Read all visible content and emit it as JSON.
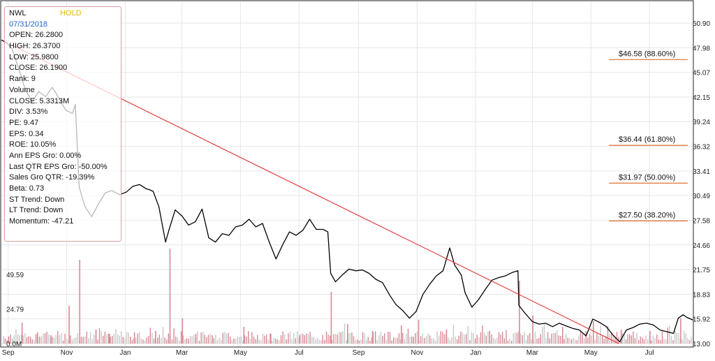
{
  "chart_data": {
    "type": "stock",
    "ticker": "NWL",
    "rating": "HOLD",
    "colors": {
      "price": "#000000",
      "trendline": "#e03030",
      "fib_line": "#e07030",
      "volume_up": "#d88a94",
      "volume_down": "#c8c8c8",
      "panel_border": "#d9a0a0",
      "date_text": "#2266cc",
      "rating_text": "#e6b800"
    },
    "info_panel": [
      {
        "key": "date",
        "text": "07/31/2018"
      },
      {
        "key": "open",
        "text": "OPEN: 26.2800"
      },
      {
        "key": "high",
        "text": "HIGH: 26.3700"
      },
      {
        "key": "low",
        "text": "LOW: 25.9800"
      },
      {
        "key": "close",
        "text": "CLOSE: 26.1900"
      },
      {
        "key": "rank",
        "text": "Rank: 9"
      },
      {
        "key": "volume",
        "text": "Volume"
      },
      {
        "key": "volume_close",
        "text": "CLOSE: 5.3313M"
      },
      {
        "key": "div",
        "text": "DIV: 3.53%"
      },
      {
        "key": "pe",
        "text": "PE: 9.47"
      },
      {
        "key": "eps",
        "text": "EPS: 0.34"
      },
      {
        "key": "roe",
        "text": "ROE: 10.05%"
      },
      {
        "key": "ann_eps_gro",
        "text": "Ann EPS Gro: 0.00%"
      },
      {
        "key": "last_qtr_eps_gro",
        "text": "Last QTR EPS Gro: -50.00%"
      },
      {
        "key": "sales_gro_qtr",
        "text": "Sales Gro QTR: -19.39%"
      },
      {
        "key": "beta",
        "text": "Beta: 0.73"
      },
      {
        "key": "st_trend",
        "text": "ST Trend: Down"
      },
      {
        "key": "lt_trend",
        "text": "LT Trend: Down"
      },
      {
        "key": "momentum",
        "text": "Momentum: -47.21"
      }
    ],
    "price_axis": {
      "range": [
        13.0,
        50.9
      ],
      "ticks": [
        "50.90",
        "47.98",
        "45.07",
        "42.15",
        "39.24",
        "36.32",
        "33.41",
        "30.49",
        "27.58",
        "24.66",
        "21.75",
        "18.83",
        "15.92",
        "13.00"
      ]
    },
    "volume_axis": {
      "range_millions": [
        0,
        99
      ],
      "ticks": [
        "49.59",
        "24.79",
        "0.0M"
      ],
      "tick_values_millions": [
        49.59,
        24.79,
        0
      ]
    },
    "x_axis": {
      "start": "2017-08-25",
      "end": "2019-08-15",
      "ticks": [
        {
          "label": "Sep",
          "date": "2017-09-01"
        },
        {
          "label": "Nov",
          "date": "2017-11-01"
        },
        {
          "label": "Jan",
          "date": "2018-01-01"
        },
        {
          "label": "Mar",
          "date": "2018-03-01"
        },
        {
          "label": "May",
          "date": "2018-05-01"
        },
        {
          "label": "Jul",
          "date": "2018-07-01"
        },
        {
          "label": "Sep",
          "date": "2018-09-01"
        },
        {
          "label": "Nov",
          "date": "2018-11-01"
        },
        {
          "label": "Jan",
          "date": "2019-01-01"
        },
        {
          "label": "Mar",
          "date": "2019-03-01"
        },
        {
          "label": "May",
          "date": "2019-05-01"
        },
        {
          "label": "Jul",
          "date": "2019-07-01"
        }
      ]
    },
    "fibonacci_levels": [
      {
        "label": "$46.58 (88.60%)",
        "price": 46.58
      },
      {
        "label": "$36.44 (61.80%)",
        "price": 36.44
      },
      {
        "label": "$31.97 (50.00%)",
        "price": 31.97
      },
      {
        "label": "$27.50 (38.20%)",
        "price": 27.5
      }
    ],
    "trendline": [
      {
        "date": "2017-09-05",
        "price": 48.3
      },
      {
        "date": "2019-05-30",
        "price": 13.0
      }
    ],
    "price_series": [
      {
        "date": "2017-08-25",
        "close": 48.9
      },
      {
        "date": "2017-08-31",
        "close": 48.5
      },
      {
        "date": "2017-09-05",
        "close": 47.9
      },
      {
        "date": "2017-09-12",
        "close": 45.5
      },
      {
        "date": "2017-09-19",
        "close": 43.0
      },
      {
        "date": "2017-09-26",
        "close": 41.6
      },
      {
        "date": "2017-10-03",
        "close": 42.8
      },
      {
        "date": "2017-10-10",
        "close": 42.2
      },
      {
        "date": "2017-10-17",
        "close": 43.3
      },
      {
        "date": "2017-10-24",
        "close": 42.0
      },
      {
        "date": "2017-10-31",
        "close": 40.6
      },
      {
        "date": "2017-11-07",
        "close": 40.2
      },
      {
        "date": "2017-11-10",
        "close": 41.3
      },
      {
        "date": "2017-11-14",
        "close": 31.5
      },
      {
        "date": "2017-11-20",
        "close": 29.2
      },
      {
        "date": "2017-11-27",
        "close": 28.0
      },
      {
        "date": "2017-12-04",
        "close": 29.5
      },
      {
        "date": "2017-12-11",
        "close": 30.8
      },
      {
        "date": "2017-12-18",
        "close": 31.1
      },
      {
        "date": "2017-12-26",
        "close": 30.6
      },
      {
        "date": "2018-01-02",
        "close": 30.9
      },
      {
        "date": "2018-01-09",
        "close": 31.6
      },
      {
        "date": "2018-01-16",
        "close": 31.8
      },
      {
        "date": "2018-01-23",
        "close": 31.3
      },
      {
        "date": "2018-01-26",
        "close": 31.2
      },
      {
        "date": "2018-01-30",
        "close": 31.0
      },
      {
        "date": "2018-02-05",
        "close": 29.2
      },
      {
        "date": "2018-02-12",
        "close": 25.0
      },
      {
        "date": "2018-02-16",
        "close": 26.6
      },
      {
        "date": "2018-02-22",
        "close": 28.8
      },
      {
        "date": "2018-03-01",
        "close": 28.1
      },
      {
        "date": "2018-03-08",
        "close": 27.0
      },
      {
        "date": "2018-03-15",
        "close": 27.4
      },
      {
        "date": "2018-03-22",
        "close": 28.9
      },
      {
        "date": "2018-03-29",
        "close": 25.5
      },
      {
        "date": "2018-04-05",
        "close": 25.0
      },
      {
        "date": "2018-04-12",
        "close": 26.0
      },
      {
        "date": "2018-04-19",
        "close": 25.8
      },
      {
        "date": "2018-04-26",
        "close": 26.8
      },
      {
        "date": "2018-05-03",
        "close": 27.0
      },
      {
        "date": "2018-05-10",
        "close": 27.7
      },
      {
        "date": "2018-05-17",
        "close": 26.8
      },
      {
        "date": "2018-05-24",
        "close": 27.2
      },
      {
        "date": "2018-05-31",
        "close": 25.0
      },
      {
        "date": "2018-06-07",
        "close": 23.0
      },
      {
        "date": "2018-06-14",
        "close": 24.7
      },
      {
        "date": "2018-06-21",
        "close": 26.2
      },
      {
        "date": "2018-06-28",
        "close": 25.8
      },
      {
        "date": "2018-07-05",
        "close": 26.4
      },
      {
        "date": "2018-07-12",
        "close": 27.7
      },
      {
        "date": "2018-07-19",
        "close": 26.5
      },
      {
        "date": "2018-07-26",
        "close": 26.5
      },
      {
        "date": "2018-07-31",
        "close": 26.2
      },
      {
        "date": "2018-08-03",
        "close": 21.3
      },
      {
        "date": "2018-08-08",
        "close": 20.3
      },
      {
        "date": "2018-08-15",
        "close": 21.1
      },
      {
        "date": "2018-08-22",
        "close": 21.8
      },
      {
        "date": "2018-08-29",
        "close": 21.6
      },
      {
        "date": "2018-09-05",
        "close": 21.7
      },
      {
        "date": "2018-09-12",
        "close": 21.3
      },
      {
        "date": "2018-09-19",
        "close": 20.6
      },
      {
        "date": "2018-09-26",
        "close": 20.2
      },
      {
        "date": "2018-10-03",
        "close": 18.8
      },
      {
        "date": "2018-10-10",
        "close": 17.6
      },
      {
        "date": "2018-10-17",
        "close": 16.9
      },
      {
        "date": "2018-10-24",
        "close": 16.0
      },
      {
        "date": "2018-10-31",
        "close": 16.8
      },
      {
        "date": "2018-11-07",
        "close": 18.8
      },
      {
        "date": "2018-11-14",
        "close": 20.0
      },
      {
        "date": "2018-11-21",
        "close": 21.0
      },
      {
        "date": "2018-11-28",
        "close": 21.6
      },
      {
        "date": "2018-12-05",
        "close": 24.3
      },
      {
        "date": "2018-12-10",
        "close": 22.3
      },
      {
        "date": "2018-12-17",
        "close": 21.1
      },
      {
        "date": "2018-12-21",
        "close": 19.0
      },
      {
        "date": "2018-12-28",
        "close": 17.3
      },
      {
        "date": "2019-01-04",
        "close": 18.2
      },
      {
        "date": "2019-01-11",
        "close": 19.4
      },
      {
        "date": "2019-01-18",
        "close": 20.5
      },
      {
        "date": "2019-01-25",
        "close": 20.8
      },
      {
        "date": "2019-02-01",
        "close": 21.0
      },
      {
        "date": "2019-02-08",
        "close": 21.4
      },
      {
        "date": "2019-02-14",
        "close": 21.6
      },
      {
        "date": "2019-02-15",
        "close": 17.5
      },
      {
        "date": "2019-02-22",
        "close": 16.5
      },
      {
        "date": "2019-03-01",
        "close": 15.6
      },
      {
        "date": "2019-03-08",
        "close": 15.3
      },
      {
        "date": "2019-03-15",
        "close": 15.4
      },
      {
        "date": "2019-03-22",
        "close": 15.0
      },
      {
        "date": "2019-03-29",
        "close": 15.4
      },
      {
        "date": "2019-04-05",
        "close": 15.1
      },
      {
        "date": "2019-04-12",
        "close": 14.8
      },
      {
        "date": "2019-04-19",
        "close": 14.6
      },
      {
        "date": "2019-04-26",
        "close": 13.9
      },
      {
        "date": "2019-05-03",
        "close": 15.9
      },
      {
        "date": "2019-05-10",
        "close": 15.5
      },
      {
        "date": "2019-05-17",
        "close": 15.0
      },
      {
        "date": "2019-05-24",
        "close": 14.0
      },
      {
        "date": "2019-05-31",
        "close": 13.2
      },
      {
        "date": "2019-06-07",
        "close": 14.6
      },
      {
        "date": "2019-06-14",
        "close": 14.9
      },
      {
        "date": "2019-06-21",
        "close": 15.3
      },
      {
        "date": "2019-06-28",
        "close": 15.4
      },
      {
        "date": "2019-07-05",
        "close": 15.2
      },
      {
        "date": "2019-07-12",
        "close": 14.6
      },
      {
        "date": "2019-07-19",
        "close": 14.4
      },
      {
        "date": "2019-07-26",
        "close": 14.2
      },
      {
        "date": "2019-07-31",
        "close": 16.0
      },
      {
        "date": "2019-08-05",
        "close": 16.4
      },
      {
        "date": "2019-08-09",
        "close": 16.1
      },
      {
        "date": "2019-08-15",
        "close": 15.8
      }
    ],
    "volume_series_millions": [
      {
        "date": "2017-09-01",
        "v": 5
      },
      {
        "date": "2017-09-15",
        "v": 15
      },
      {
        "date": "2017-10-01",
        "v": 8
      },
      {
        "date": "2017-10-15",
        "v": 6
      },
      {
        "date": "2017-11-03",
        "v": 27
      },
      {
        "date": "2017-11-14",
        "v": 60
      },
      {
        "date": "2017-12-01",
        "v": 10
      },
      {
        "date": "2017-12-15",
        "v": 7
      },
      {
        "date": "2018-01-10",
        "v": 8
      },
      {
        "date": "2018-02-01",
        "v": 9
      },
      {
        "date": "2018-02-16",
        "v": 68
      },
      {
        "date": "2018-03-01",
        "v": 18
      },
      {
        "date": "2018-03-15",
        "v": 7
      },
      {
        "date": "2018-04-01",
        "v": 6
      },
      {
        "date": "2018-05-04",
        "v": 12
      },
      {
        "date": "2018-06-01",
        "v": 7
      },
      {
        "date": "2018-07-01",
        "v": 6
      },
      {
        "date": "2018-08-03",
        "v": 37
      },
      {
        "date": "2018-08-20",
        "v": 14
      },
      {
        "date": "2018-09-15",
        "v": 9
      },
      {
        "date": "2018-10-15",
        "v": 13
      },
      {
        "date": "2018-11-02",
        "v": 17
      },
      {
        "date": "2018-12-01",
        "v": 10
      },
      {
        "date": "2019-01-15",
        "v": 9
      },
      {
        "date": "2019-02-15",
        "v": 45
      },
      {
        "date": "2019-03-01",
        "v": 20
      },
      {
        "date": "2019-04-01",
        "v": 12
      },
      {
        "date": "2019-05-03",
        "v": 16
      },
      {
        "date": "2019-06-01",
        "v": 10
      },
      {
        "date": "2019-07-01",
        "v": 9
      },
      {
        "date": "2019-08-02",
        "v": 18
      }
    ]
  }
}
